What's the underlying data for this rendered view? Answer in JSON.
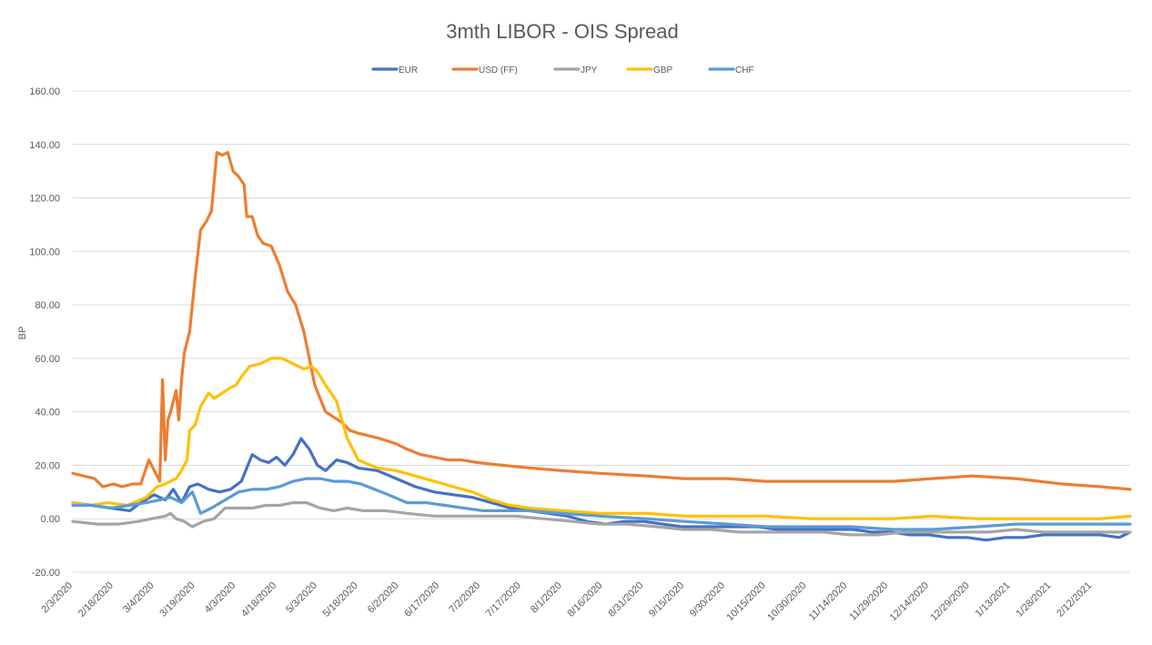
{
  "chart_data": {
    "type": "line",
    "title": "3mth LIBOR - OIS Spread",
    "xlabel": "",
    "ylabel": "BP",
    "ylim": [
      -20,
      160
    ],
    "ytick_values": [
      -20,
      0,
      20,
      40,
      60,
      80,
      100,
      120,
      140,
      160
    ],
    "ytick_labels": [
      "-20.00",
      "0.00",
      "20.00",
      "40.00",
      "60.00",
      "80.00",
      "100.00",
      "120.00",
      "140.00",
      "160.00"
    ],
    "xlim": [
      "2020-02-03",
      "2021-02-26"
    ],
    "x_tick_dates": [
      "2020-02-03",
      "2020-02-18",
      "2020-03-04",
      "2020-03-19",
      "2020-04-03",
      "2020-04-18",
      "2020-05-03",
      "2020-05-18",
      "2020-06-02",
      "2020-06-17",
      "2020-07-02",
      "2020-07-17",
      "2020-08-01",
      "2020-08-16",
      "2020-08-31",
      "2020-09-15",
      "2020-09-30",
      "2020-10-15",
      "2020-10-30",
      "2020-11-14",
      "2020-11-29",
      "2020-12-14",
      "2020-12-29",
      "2021-01-13",
      "2021-01-28",
      "2021-02-12"
    ],
    "x_tick_labels": [
      "2/3/2020",
      "2/18/2020",
      "3/4/2020",
      "3/19/2020",
      "4/3/2020",
      "4/18/2020",
      "5/3/2020",
      "5/18/2020",
      "6/2/2020",
      "6/17/2020",
      "7/2/2020",
      "7/17/2020",
      "8/1/2020",
      "8/16/2020",
      "8/31/2020",
      "9/15/2020",
      "9/30/2020",
      "10/15/2020",
      "10/30/2020",
      "11/14/2020",
      "11/29/2020",
      "12/14/2020",
      "12/29/2020",
      "1/13/2021",
      "1/28/2021",
      "2/12/2021"
    ],
    "grid": true,
    "legend_position": "top",
    "series": [
      {
        "name": "EUR",
        "color": "#4472C4",
        "x": [
          "2020-02-03",
          "2020-02-10",
          "2020-02-17",
          "2020-02-24",
          "2020-02-28",
          "2020-03-04",
          "2020-03-08",
          "2020-03-11",
          "2020-03-14",
          "2020-03-17",
          "2020-03-20",
          "2020-03-24",
          "2020-03-28",
          "2020-04-01",
          "2020-04-05",
          "2020-04-09",
          "2020-04-12",
          "2020-04-15",
          "2020-04-18",
          "2020-04-21",
          "2020-04-24",
          "2020-04-27",
          "2020-04-30",
          "2020-05-03",
          "2020-05-06",
          "2020-05-10",
          "2020-05-14",
          "2020-05-18",
          "2020-05-25",
          "2020-06-01",
          "2020-06-08",
          "2020-06-15",
          "2020-06-22",
          "2020-06-29",
          "2020-07-06",
          "2020-07-13",
          "2020-07-20",
          "2020-07-27",
          "2020-08-03",
          "2020-08-10",
          "2020-08-17",
          "2020-08-24",
          "2020-08-31",
          "2020-09-07",
          "2020-09-14",
          "2020-09-21",
          "2020-09-28",
          "2020-10-05",
          "2020-10-12",
          "2020-10-19",
          "2020-10-26",
          "2020-11-02",
          "2020-11-09",
          "2020-11-16",
          "2020-11-23",
          "2020-11-30",
          "2020-12-07",
          "2020-12-14",
          "2020-12-21",
          "2020-12-28",
          "2021-01-04",
          "2021-01-11",
          "2021-01-18",
          "2021-01-25",
          "2021-02-01",
          "2021-02-08",
          "2021-02-15",
          "2021-02-22",
          "2021-02-26"
        ],
        "y": [
          6,
          5,
          4,
          3,
          6,
          9,
          7,
          11,
          6,
          12,
          13,
          11,
          10,
          11,
          14,
          24,
          22,
          21,
          23,
          20,
          24,
          30,
          26,
          20,
          18,
          22,
          21,
          19,
          18,
          15,
          12,
          10,
          9,
          8,
          6,
          4,
          3,
          2,
          1,
          -1,
          -2,
          -1,
          -1,
          -2,
          -3,
          -3,
          -3,
          -3,
          -3,
          -4,
          -4,
          -4,
          -4,
          -4,
          -5,
          -5,
          -6,
          -6,
          -7,
          -7,
          -8,
          -7,
          -7,
          -6,
          -6,
          -6,
          -6,
          -7,
          -5
        ]
      },
      {
        "name": "USD (FF)",
        "color": "#ED7D31",
        "x": [
          "2020-02-03",
          "2020-02-07",
          "2020-02-11",
          "2020-02-14",
          "2020-02-18",
          "2020-02-21",
          "2020-02-25",
          "2020-02-28",
          "2020-03-02",
          "2020-03-04",
          "2020-03-06",
          "2020-03-07",
          "2020-03-08",
          "2020-03-09",
          "2020-03-10",
          "2020-03-12",
          "2020-03-13",
          "2020-03-14",
          "2020-03-15",
          "2020-03-17",
          "2020-03-19",
          "2020-03-21",
          "2020-03-23",
          "2020-03-25",
          "2020-03-27",
          "2020-03-29",
          "2020-03-31",
          "2020-04-02",
          "2020-04-04",
          "2020-04-06",
          "2020-04-07",
          "2020-04-09",
          "2020-04-11",
          "2020-04-13",
          "2020-04-16",
          "2020-04-19",
          "2020-04-22",
          "2020-04-25",
          "2020-04-28",
          "2020-04-30",
          "2020-05-01",
          "2020-05-02",
          "2020-05-04",
          "2020-05-06",
          "2020-05-09",
          "2020-05-12",
          "2020-05-15",
          "2020-05-18",
          "2020-05-22",
          "2020-05-26",
          "2020-06-01",
          "2020-06-05",
          "2020-06-10",
          "2020-06-15",
          "2020-06-20",
          "2020-06-25",
          "2020-07-01",
          "2020-07-10",
          "2020-07-20",
          "2020-08-01",
          "2020-08-15",
          "2020-09-01",
          "2020-09-15",
          "2020-10-01",
          "2020-10-15",
          "2020-11-01",
          "2020-11-15",
          "2020-12-01",
          "2020-12-15",
          "2020-12-30",
          "2021-01-15",
          "2021-02-01",
          "2021-02-15",
          "2021-02-26"
        ],
        "y": [
          17,
          16,
          15,
          12,
          13,
          12,
          13,
          13,
          22,
          18,
          14,
          52,
          22,
          37,
          40,
          48,
          37,
          52,
          62,
          70,
          90,
          108,
          111,
          115,
          137,
          136,
          137,
          130,
          128,
          125,
          113,
          113,
          106,
          103,
          102,
          95,
          85,
          80,
          70,
          60,
          55,
          50,
          45,
          40,
          38,
          36,
          33,
          32,
          31,
          30,
          28,
          26,
          24,
          23,
          22,
          22,
          21,
          20,
          19,
          18,
          17,
          16,
          15,
          15,
          14,
          14,
          14,
          14,
          15,
          16,
          15,
          13,
          12,
          11
        ]
      },
      {
        "name": "JPY",
        "color": "#A5A5A5",
        "x": [
          "2020-02-03",
          "2020-02-12",
          "2020-02-20",
          "2020-02-27",
          "2020-03-03",
          "2020-03-08",
          "2020-03-10",
          "2020-03-12",
          "2020-03-15",
          "2020-03-18",
          "2020-03-22",
          "2020-03-26",
          "2020-03-30",
          "2020-04-04",
          "2020-04-09",
          "2020-04-14",
          "2020-04-19",
          "2020-04-24",
          "2020-04-29",
          "2020-05-04",
          "2020-05-09",
          "2020-05-14",
          "2020-05-20",
          "2020-05-28",
          "2020-06-05",
          "2020-06-15",
          "2020-06-25",
          "2020-07-05",
          "2020-07-15",
          "2020-07-25",
          "2020-08-05",
          "2020-08-15",
          "2020-08-25",
          "2020-09-05",
          "2020-09-15",
          "2020-09-25",
          "2020-10-05",
          "2020-10-15",
          "2020-10-25",
          "2020-11-05",
          "2020-11-15",
          "2020-11-25",
          "2020-12-05",
          "2020-12-15",
          "2020-12-25",
          "2021-01-05",
          "2021-01-15",
          "2021-01-25",
          "2021-02-05",
          "2021-02-15",
          "2021-02-26"
        ],
        "y": [
          -1,
          -2,
          -2,
          -1,
          0,
          1,
          2,
          0,
          -1,
          -3,
          -1,
          0,
          4,
          4,
          4,
          5,
          5,
          6,
          6,
          4,
          3,
          4,
          3,
          3,
          2,
          1,
          1,
          1,
          1,
          0,
          -1,
          -2,
          -2,
          -3,
          -4,
          -4,
          -5,
          -5,
          -5,
          -5,
          -6,
          -6,
          -5,
          -5,
          -5,
          -5,
          -4,
          -5,
          -5,
          -5,
          -5
        ]
      },
      {
        "name": "GBP",
        "color": "#FFC000",
        "x": [
          "2020-02-03",
          "2020-02-09",
          "2020-02-16",
          "2020-02-23",
          "2020-03-01",
          "2020-03-05",
          "2020-03-08",
          "2020-03-10",
          "2020-03-12",
          "2020-03-14",
          "2020-03-16",
          "2020-03-17",
          "2020-03-19",
          "2020-03-21",
          "2020-03-24",
          "2020-03-26",
          "2020-03-29",
          "2020-04-01",
          "2020-04-03",
          "2020-04-05",
          "2020-04-08",
          "2020-04-12",
          "2020-04-16",
          "2020-04-20",
          "2020-04-24",
          "2020-04-28",
          "2020-05-01",
          "2020-05-03",
          "2020-05-06",
          "2020-05-10",
          "2020-05-14",
          "2020-05-18",
          "2020-05-25",
          "2020-06-01",
          "2020-06-08",
          "2020-06-15",
          "2020-06-22",
          "2020-06-29",
          "2020-07-06",
          "2020-07-13",
          "2020-07-20",
          "2020-08-01",
          "2020-08-15",
          "2020-09-01",
          "2020-09-15",
          "2020-10-01",
          "2020-10-15",
          "2020-11-01",
          "2020-11-15",
          "2020-12-01",
          "2020-12-15",
          "2021-01-01",
          "2021-01-15",
          "2021-02-01",
          "2021-02-15",
          "2021-02-26"
        ],
        "y": [
          6,
          5,
          6,
          5,
          8,
          12,
          13,
          14,
          15,
          18,
          22,
          33,
          35,
          42,
          47,
          45,
          47,
          49,
          50,
          53,
          57,
          58,
          60,
          60,
          58,
          56,
          57,
          55,
          50,
          44,
          30,
          22,
          19,
          18,
          16,
          14,
          12,
          10,
          7,
          5,
          4,
          3,
          2,
          2,
          1,
          1,
          1,
          0,
          0,
          0,
          1,
          0,
          0,
          0,
          0,
          1
        ]
      },
      {
        "name": "CHF",
        "color": "#5B9BD5",
        "x": [
          "2020-02-03",
          "2020-02-10",
          "2020-02-17",
          "2020-02-24",
          "2020-03-01",
          "2020-03-06",
          "2020-03-10",
          "2020-03-14",
          "2020-03-18",
          "2020-03-21",
          "2020-03-25",
          "2020-03-30",
          "2020-04-04",
          "2020-04-09",
          "2020-04-14",
          "2020-04-19",
          "2020-04-24",
          "2020-04-29",
          "2020-05-04",
          "2020-05-09",
          "2020-05-14",
          "2020-05-19",
          "2020-05-24",
          "2020-05-29",
          "2020-06-05",
          "2020-06-12",
          "2020-06-19",
          "2020-06-26",
          "2020-07-03",
          "2020-07-10",
          "2020-07-20",
          "2020-08-01",
          "2020-08-15",
          "2020-09-01",
          "2020-09-15",
          "2020-10-01",
          "2020-10-15",
          "2020-11-01",
          "2020-11-15",
          "2020-12-01",
          "2020-12-15",
          "2021-01-01",
          "2021-01-15",
          "2021-02-01",
          "2021-02-15",
          "2021-02-26"
        ],
        "y": [
          5,
          5,
          4,
          5,
          6,
          7,
          8,
          6,
          10,
          2,
          4,
          7,
          10,
          11,
          11,
          12,
          14,
          15,
          15,
          14,
          14,
          13,
          11,
          9,
          6,
          6,
          5,
          4,
          3,
          3,
          3,
          2,
          1,
          0,
          -1,
          -2,
          -3,
          -3,
          -3,
          -4,
          -4,
          -3,
          -2,
          -2,
          -2,
          -2
        ]
      }
    ]
  }
}
